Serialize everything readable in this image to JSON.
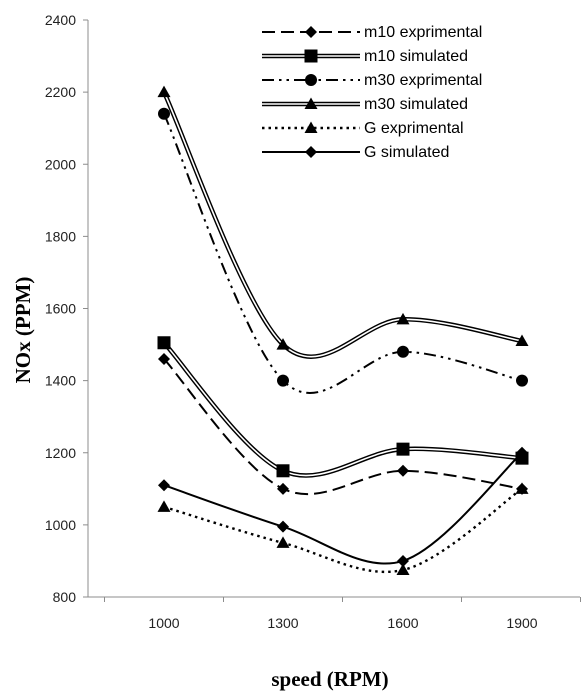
{
  "chart_data": {
    "type": "line",
    "title": "",
    "xlabel": "speed (RPM)",
    "ylabel": "NOx (PPM)",
    "categories": [
      "1000",
      "1300",
      "1600",
      "1900"
    ],
    "ylim": [
      800,
      2400
    ],
    "yticks": [
      800,
      1000,
      1200,
      1400,
      1600,
      1800,
      2000,
      2200,
      2400
    ],
    "grid": false,
    "legend_position": "top-right",
    "series": [
      {
        "name": "m10 exprimental",
        "values": [
          1460,
          1100,
          1150,
          1100
        ],
        "marker": "diamond",
        "line": "dashed"
      },
      {
        "name": "m10 simulated",
        "values": [
          1505,
          1150,
          1210,
          1185
        ],
        "marker": "square",
        "line": "double"
      },
      {
        "name": "m30 exprimental",
        "values": [
          2140,
          1400,
          1480,
          1400
        ],
        "marker": "circle",
        "line": "dash-dot-dot"
      },
      {
        "name": "m30 simulated",
        "values": [
          2200,
          1500,
          1570,
          1510
        ],
        "marker": "triangle",
        "line": "double"
      },
      {
        "name": "G exprimental",
        "values": [
          1050,
          950,
          875,
          1100
        ],
        "marker": "triangle",
        "line": "dotted"
      },
      {
        "name": "G simulated",
        "values": [
          1110,
          995,
          900,
          1200
        ],
        "marker": "diamond",
        "line": "solid"
      }
    ]
  }
}
